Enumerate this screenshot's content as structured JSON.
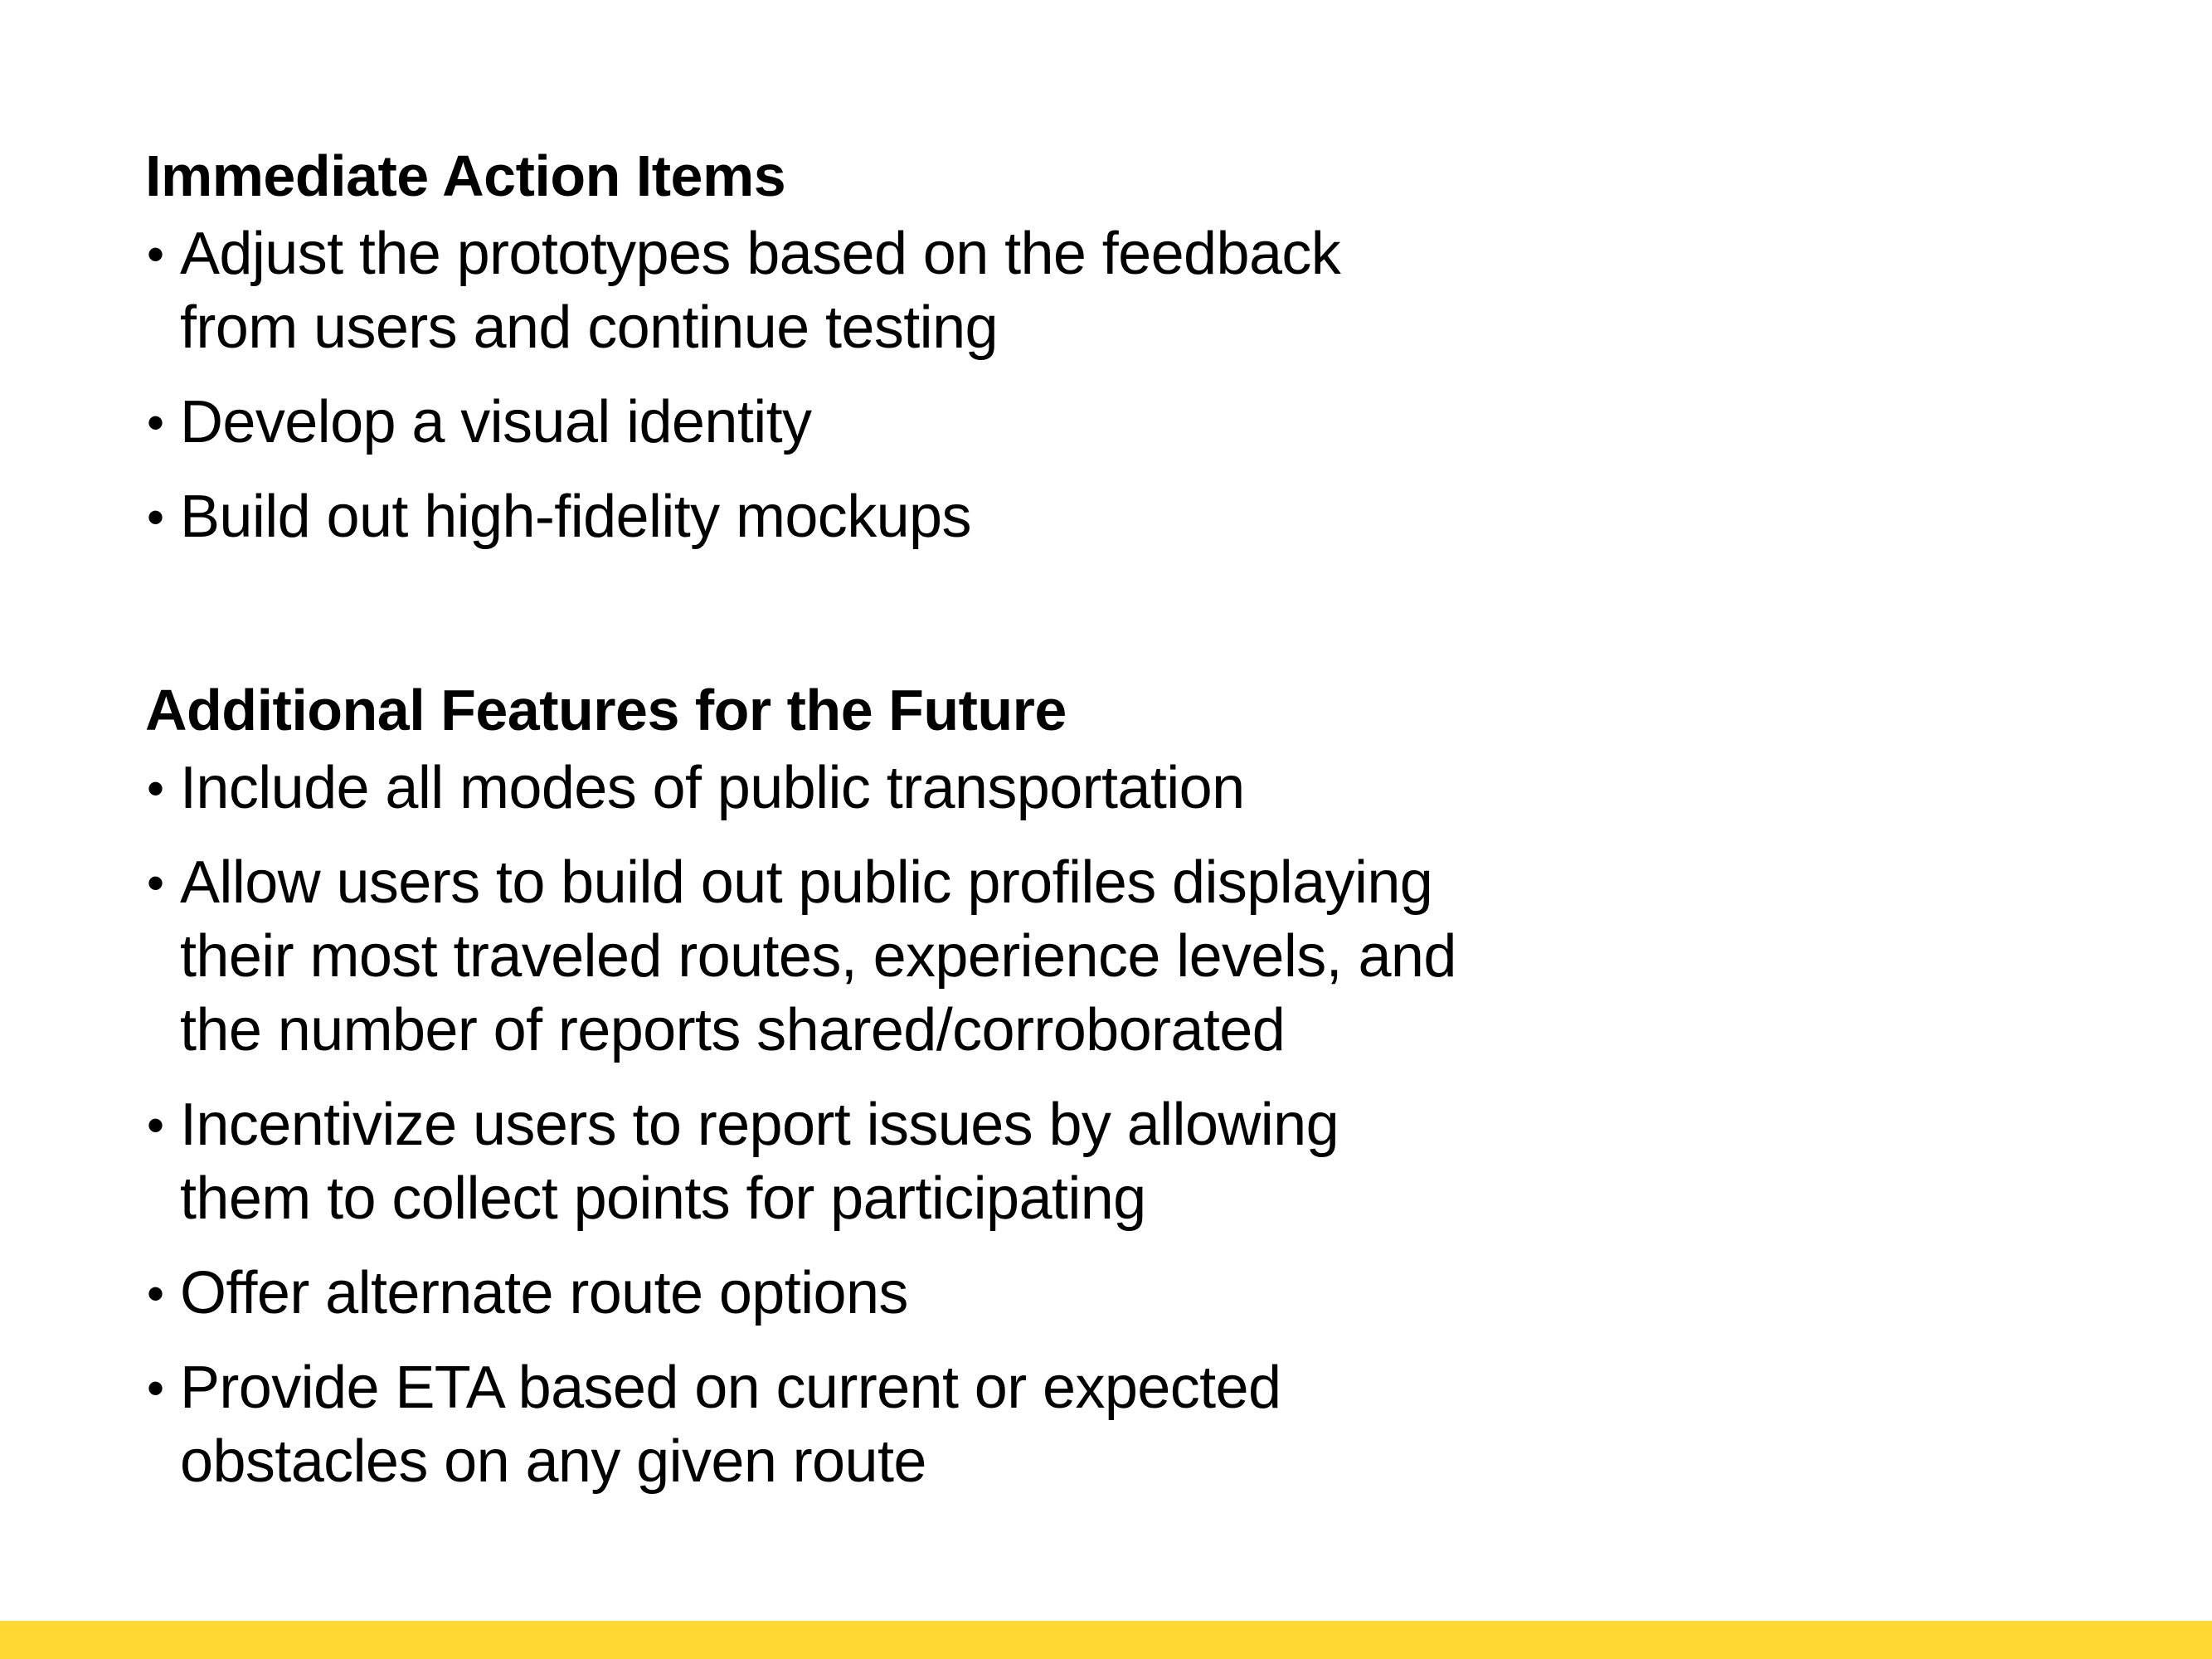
{
  "sections": [
    {
      "title": "Immediate Action Items",
      "items": [
        "Adjust the prototypes based on the feedback\nfrom users and continue testing",
        "Develop a visual identity",
        "Build out high-fidelity mockups"
      ]
    },
    {
      "title": "Additional Features for the Future",
      "items": [
        "Include all modes of public transportation",
        "Allow users to build out public profiles displaying\ntheir most traveled routes, experience levels, and\nthe number of reports shared/corroborated",
        "Incentivize users to report issues by allowing\nthem to collect points for participating",
        "Offer alternate route options",
        "Provide ETA based on current or expected\nobstacles on any given route"
      ]
    }
  ],
  "colors": {
    "accent_bar": "#FFD833",
    "text": "#000000",
    "background": "#FFFFFF"
  }
}
